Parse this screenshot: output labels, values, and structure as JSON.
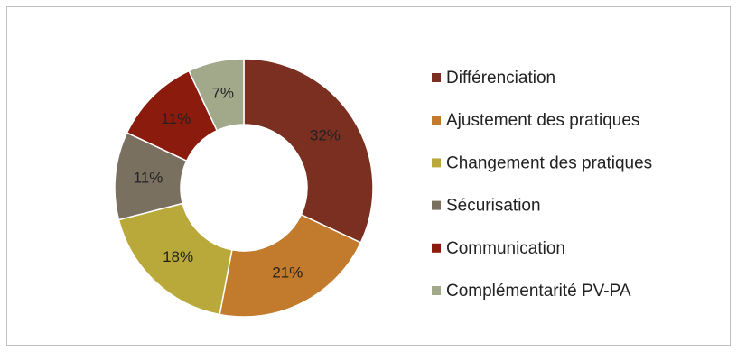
{
  "chart_data": {
    "type": "donut",
    "categories": [
      "Différenciation",
      "Ajustement des pratiques",
      "Changement des pratiques",
      "Sécurisation",
      "Communication",
      "Complémentarité PV-PA"
    ],
    "values": [
      32,
      21,
      18,
      11,
      11,
      7
    ],
    "value_labels": [
      "32%",
      "21%",
      "18%",
      "11%",
      "11%",
      "7%"
    ],
    "colors": [
      "#7b2f20",
      "#c27a2c",
      "#b9a93b",
      "#7a7060",
      "#8a1b0d",
      "#a2a98b"
    ],
    "legend": "right"
  }
}
